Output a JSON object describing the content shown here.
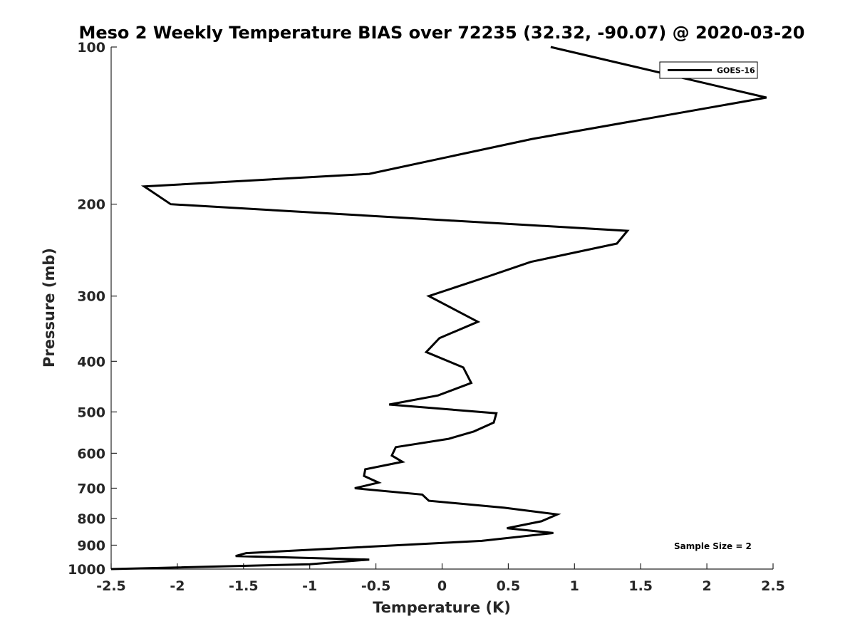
{
  "chart_data": {
    "type": "line",
    "title": "Meso 2 Weekly Temperature BIAS over 72235 (32.32, -90.07) @ 2020-03-20",
    "xlabel": "Temperature (K)",
    "ylabel": "Pressure (mb)",
    "xlim": [
      -2.5,
      2.5
    ],
    "ylim": [
      100,
      1000
    ],
    "y_scale": "log",
    "y_reversed": true,
    "x_ticks": [
      -2.5,
      -2,
      -1.5,
      -1,
      -0.5,
      0,
      0.5,
      1,
      1.5,
      2,
      2.5
    ],
    "x_tick_labels": [
      "-2.5",
      "-2",
      "-1.5",
      "-1",
      "-0.5",
      "0",
      "0.5",
      "1",
      "1.5",
      "2",
      "2.5"
    ],
    "y_ticks": [
      100,
      200,
      300,
      400,
      500,
      600,
      700,
      800,
      900,
      1000
    ],
    "y_tick_labels": [
      "100",
      "200",
      "300",
      "400",
      "500",
      "600",
      "700",
      "800",
      "900",
      "1000"
    ],
    "grid": false,
    "legend": {
      "position": "top-right"
    },
    "annotation": "Sample Size = 2",
    "series": [
      {
        "name": "GOES-16",
        "color": "#000000",
        "points": [
          [
            0.82,
            100
          ],
          [
            2.45,
            125
          ],
          [
            0.68,
            150
          ],
          [
            -0.55,
            175
          ],
          [
            -2.25,
            185
          ],
          [
            -2.05,
            200
          ],
          [
            1.4,
            225
          ],
          [
            1.32,
            238
          ],
          [
            0.67,
            258
          ],
          [
            0.35,
            275
          ],
          [
            -0.1,
            300
          ],
          [
            0.27,
            336
          ],
          [
            -0.02,
            361
          ],
          [
            -0.12,
            384
          ],
          [
            0.16,
            411
          ],
          [
            0.22,
            440
          ],
          [
            -0.03,
            465
          ],
          [
            -0.4,
            484
          ],
          [
            0.41,
            503
          ],
          [
            0.39,
            524
          ],
          [
            0.24,
            545
          ],
          [
            0.05,
            563
          ],
          [
            -0.35,
            584
          ],
          [
            -0.38,
            606
          ],
          [
            -0.3,
            623
          ],
          [
            -0.58,
            644
          ],
          [
            -0.59,
            663
          ],
          [
            -0.48,
            683
          ],
          [
            -0.66,
            700
          ],
          [
            -0.15,
            720
          ],
          [
            -0.1,
            740
          ],
          [
            0.47,
            763
          ],
          [
            0.87,
            786
          ],
          [
            0.75,
            810
          ],
          [
            0.49,
            835
          ],
          [
            0.84,
            853
          ],
          [
            0.3,
            883
          ],
          [
            -0.8,
            913
          ],
          [
            -1.48,
            932
          ],
          [
            -1.56,
            944
          ],
          [
            -0.55,
            959
          ],
          [
            -1.0,
            979
          ],
          [
            -2.5,
            1000
          ]
        ]
      }
    ]
  }
}
